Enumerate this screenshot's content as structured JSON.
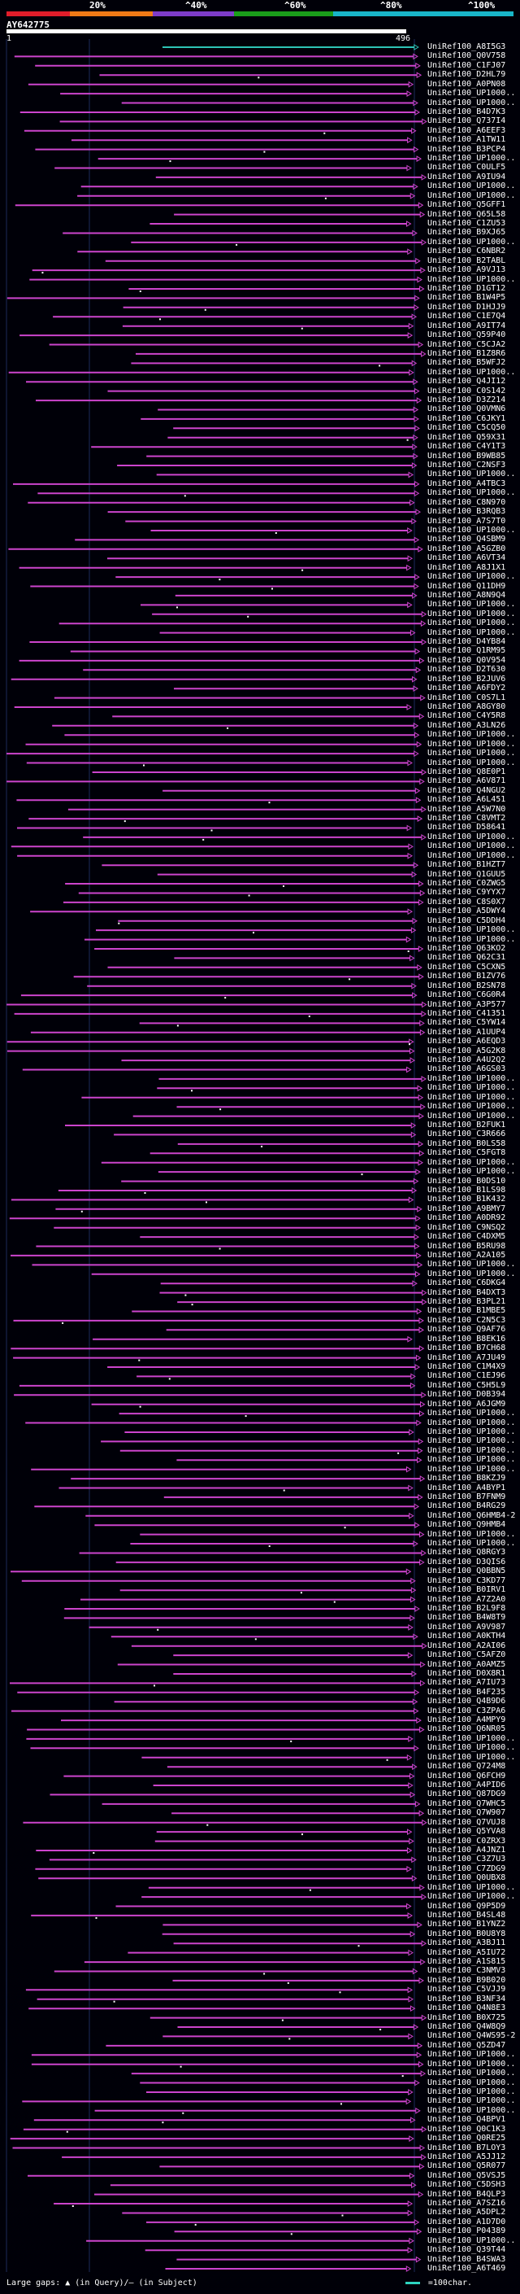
{
  "scale": {
    "labels": [
      "20%",
      "^40%",
      "^60%",
      "^80%",
      "^100%"
    ],
    "colors": [
      "#e11d2a",
      "#f07a16",
      "#7e3cc8",
      "#1a9e1a",
      "#19b6c8"
    ]
  },
  "query": {
    "id": "AY642775",
    "start": "1",
    "end": "496"
  },
  "hit_color": "#cc44cc",
  "best_hit_color": "#2ec4b6",
  "hits": [
    "UniRef100_A8I5G3",
    "UniRef100_Q0V758",
    "UniRef100_C1FJ07",
    "UniRef100_D2HL79",
    "UniRef100_A0PN08",
    "UniRef100_UP1000..",
    "UniRef100_UP1000..",
    "UniRef100_B4D7K3",
    "UniRef100_Q737I4",
    "UniRef100_A6EEF3",
    "UniRef100_A1TW11",
    "UniRef100_B3PCP4",
    "UniRef100_UP1000..",
    "UniRef100_C0ULF5",
    "UniRef100_A9IU94",
    "UniRef100_UP1000..",
    "UniRef100_UP1000..",
    "UniRef100_Q5GFF1",
    "UniRef100_Q65L58",
    "UniRef100_C1ZU53",
    "UniRef100_B9XJ65",
    "UniRef100_UP1000..",
    "UniRef100_C6NBR2",
    "UniRef100_B2TABL",
    "UniRef100_A9VJ13",
    "UniRef100_UP1000..",
    "UniRef100_D1GT12",
    "UniRef100_B1W4P5",
    "UniRef100_D1HJJ9",
    "UniRef100_C1E7Q4",
    "UniRef100_A9IT74",
    "UniRef100_Q59P40",
    "UniRef100_C5CJA2",
    "UniRef100_B1Z8R6",
    "UniRef100_B5WFJ2",
    "UniRef100_UP1000..",
    "UniRef100_Q4JI12",
    "UniRef100_C0S142",
    "UniRef100_D3Z214",
    "UniRef100_Q0VMN6",
    "UniRef100_C6JKY1",
    "UniRef100_C5CQ50",
    "UniRef100_Q59X31",
    "UniRef100_C4Y1T3",
    "UniRef100_B9WB85",
    "UniRef100_C2NSF3",
    "UniRef100_UP1000..",
    "UniRef100_A4TBC3",
    "UniRef100_UP1000..",
    "UniRef100_C8N970",
    "UniRef100_B3RQB3",
    "UniRef100_A7S7T0",
    "UniRef100_UP1000..",
    "UniRef100_Q4SBM9",
    "UniRef100_A5GZB0",
    "UniRef100_A6VT34",
    "UniRef100_A8J1X1",
    "UniRef100_UP1000..",
    "UniRef100_Q11DH9",
    "UniRef100_A8N9Q4",
    "UniRef100_UP1000..",
    "UniRef100_UP1000..",
    "UniRef100_UP1000..",
    "UniRef100_UP1000..",
    "UniRef100_D4YB84",
    "UniRef100_Q1RM95",
    "UniRef100_Q0V954",
    "UniRef100_D2T630",
    "UniRef100_B2JUV6",
    "UniRef100_A6FDY2",
    "UniRef100_C0S7L1",
    "UniRef100_A8GY80",
    "UniRef100_C4Y5R8",
    "UniRef100_A3LN26",
    "UniRef100_UP1000..",
    "UniRef100_UP1000..",
    "UniRef100_UP1000..",
    "UniRef100_UP1000..",
    "UniRef100_Q8E0P1",
    "UniRef100_A6V871",
    "UniRef100_Q4NGU2",
    "UniRef100_A6L451",
    "UniRef100_A5W7N0",
    "UniRef100_C8VMT2",
    "UniRef100_D58641",
    "UniRef100_UP1000..",
    "UniRef100_UP1000..",
    "UniRef100_UP1000..",
    "UniRef100_B1HZT7",
    "UniRef100_Q1GUU5",
    "UniRef100_C0ZWG5",
    "UniRef100_C9YYX7",
    "UniRef100_C8S0X7",
    "UniRef100_A5DWY4",
    "UniRef100_C5DDH4",
    "UniRef100_UP1000..",
    "UniRef100_UP1000..",
    "UniRef100_Q63KO2",
    "UniRef100_Q62C31",
    "UniRef100_C5CXN5",
    "UniRef100_B1ZV76",
    "UniRef100_B2SN78",
    "UniRef100_C6G0R4",
    "UniRef100_A3P577",
    "UniRef100_C41351",
    "UniRef100_C5YW14",
    "UniRef100_A1UUP4",
    "UniRef100_A6EQD3",
    "UniRef100_A5G2K8",
    "UniRef100_A4U2Q2",
    "UniRef100_A6GS03",
    "UniRef100_UP1000..",
    "UniRef100_UP1000..",
    "UniRef100_UP1000..",
    "UniRef100_UP1000..",
    "UniRef100_UP1000..",
    "UniRef100_B2FUK1",
    "UniRef100_C3R666",
    "UniRef100_B0LS58",
    "UniRef100_C5FGT8",
    "UniRef100_UP1000..",
    "UniRef100_UP1000..",
    "UniRef100_B0DS10",
    "UniRef100_B1LS98",
    "UniRef100_B1K432",
    "UniRef100_A9BMY7",
    "UniRef100_A0DR92",
    "UniRef100_C9NSQ2",
    "UniRef100_C4DXM5",
    "UniRef100_B5RU98",
    "UniRef100_A2A105",
    "UniRef100_UP1000..",
    "UniRef100_UP1000..",
    "UniRef100_C6DKG4",
    "UniRef100_B4DXT3",
    "UniRef100_B3PL21",
    "UniRef100_B1MBE5",
    "UniRef100_C2N5C3",
    "UniRef100_Q9AF76",
    "UniRef100_B8EK16",
    "UniRef100_B7CH68",
    "UniRef100_A7JU49",
    "UniRef100_C1M4X9",
    "UniRef100_C1EJ96",
    "UniRef100_C5H5L9",
    "UniRef100_D0B394",
    "UniRef100_A6JGM9",
    "UniRef100_UP1000..",
    "UniRef100_UP1000..",
    "UniRef100_UP1000..",
    "UniRef100_UP1000..",
    "UniRef100_UP1000..",
    "UniRef100_UP1000..",
    "UniRef100_UP1000..",
    "UniRef100_B8KZJ9",
    "UniRef100_A4BYP1",
    "UniRef100_B7FNM9",
    "UniRef100_B4RG29",
    "UniRef100_Q6HMB4-2",
    "UniRef100_Q9HMB4",
    "UniRef100_UP1000..",
    "UniRef100_UP1000..",
    "UniRef100_Q8RGY3",
    "UniRef100_D3QIS6",
    "UniRef100_Q0BBN5",
    "UniRef100_C3KD77",
    "UniRef100_B0IRV1",
    "UniRef100_A7Z2A0",
    "UniRef100_B2L9F8",
    "UniRef100_B4W8T9",
    "UniRef100_A9V987",
    "UniRef100_A0KTH4",
    "UniRef100_A2AI06",
    "UniRef100_C5AFZ0",
    "UniRef100_A0AMZ5",
    "UniRef100_D0X8R1",
    "UniRef100_A7IU73",
    "UniRef100_B4F235",
    "UniRef100_Q4B9D6",
    "UniRef100_C3ZPA6",
    "UniRef100_A4MPY9",
    "UniRef100_Q6NR05",
    "UniRef100_UP1000..",
    "UniRef100_UP1000..",
    "UniRef100_UP1000..",
    "UniRef100_Q724M8",
    "UniRef100_Q6FCH9",
    "UniRef100_A4PID6",
    "UniRef100_Q87DG9",
    "UniRef100_Q7WHC5",
    "UniRef100_Q7W907",
    "UniRef100_Q7VUJ8",
    "UniRef100_Q5YVA8",
    "UniRef100_C0ZRX3",
    "UniRef100_A4JNZ1",
    "UniRef100_C3Z7U3",
    "UniRef100_C7ZDG9",
    "UniRef100_Q0UBX8",
    "UniRef100_UP1000..",
    "UniRef100_UP1000..",
    "UniRef100_Q9P5D9",
    "UniRef100_B4SL48",
    "UniRef100_B1YNZ2",
    "UniRef100_B0U8Y8",
    "UniRef100_A3BJ11",
    "UniRef100_A5IU72",
    "UniRef100_A1S815",
    "UniRef100_C3NMV3",
    "UniRef100_B9B020",
    "UniRef100_C5VJJ9",
    "UniRef100_B3NF34",
    "UniRef100_Q4N8E3",
    "UniRef100_B0X725",
    "UniRef100_Q4W8Q9",
    "UniRef100_Q4WS95-2",
    "UniRef100_Q5ZD47",
    "UniRef100_UP1000..",
    "UniRef100_UP1000..",
    "UniRef100_UP1000..",
    "UniRef100_UP1000..",
    "UniRef100_UP1000..",
    "UniRef100_UP1000..",
    "UniRef100_UP1000..",
    "UniRef100_Q4BPV1",
    "UniRef100_Q0C1K3",
    "UniRef100_Q0RE25",
    "UniRef100_B7LOY3",
    "UniRef100_A5JJ12",
    "UniRef100_Q5R077",
    "UniRef100_Q5VSJ5",
    "UniRef100_C5DSH3",
    "UniRef100_B4QLP3",
    "UniRef100_A7SZ16",
    "UniRef100_A5DPL2",
    "UniRef100_A1D7D0",
    "UniRef100_P04389",
    "UniRef100_UP1000..",
    "UniRef100_Q39T44",
    "UniRef100_B4SWA3",
    "UniRef100_A6T469"
  ],
  "footer": {
    "legend": "Large gaps: ▲ (in Query)/– (in Subject)",
    "scale_label": "=100char."
  }
}
